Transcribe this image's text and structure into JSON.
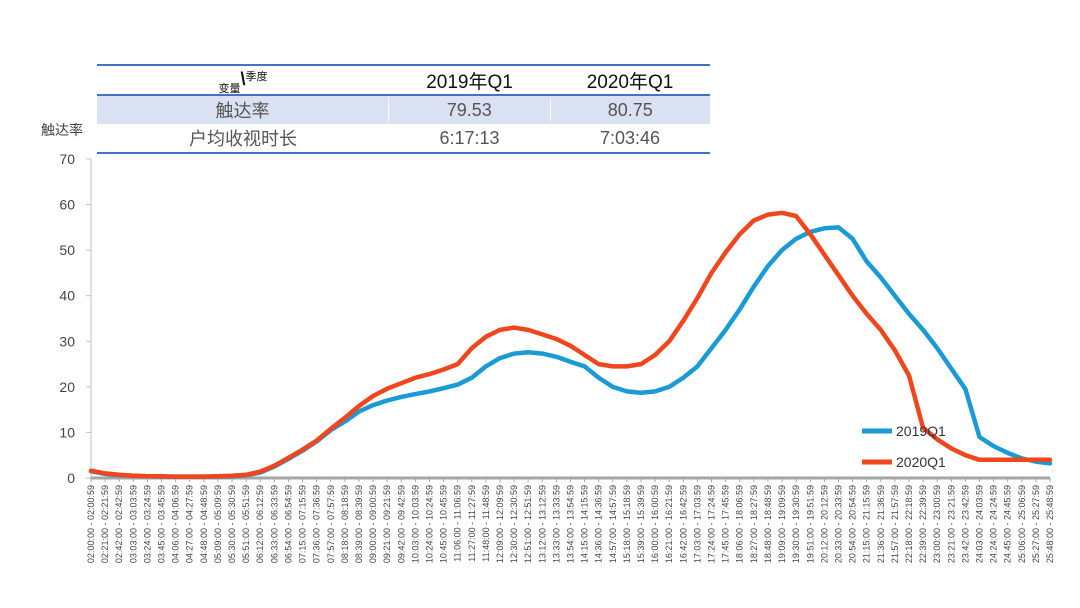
{
  "table": {
    "header": {
      "variable": "变量",
      "separator": "\\",
      "season": "季度",
      "col1": "2019年Q1",
      "col2": "2020年Q1"
    },
    "rows": [
      {
        "label": "触达率",
        "v1": "79.53",
        "v2": "80.75"
      },
      {
        "label": "户均收视时长",
        "v1": "6:17:13",
        "v2": "7:03:46"
      }
    ]
  },
  "chart_data": {
    "type": "line",
    "ylabel": "触达率",
    "ylim": [
      0,
      70
    ],
    "yticks": [
      0,
      10,
      20,
      30,
      40,
      50,
      60,
      70
    ],
    "xlabels": [
      "02:00:00 - 02:00:59",
      "02:21:00 - 02:21:59",
      "02:42:00 - 02:42:59",
      "03:03:00 - 03:03:59",
      "03:24:00 - 03:24:59",
      "03:45:00 - 03:45:59",
      "04:06:00 - 04:06:59",
      "04:27:00 - 04:27:59",
      "04:48:00 - 04:48:59",
      "05:09:00 - 05:09:59",
      "05:30:00 - 05:30:59",
      "05:51:00 - 05:51:59",
      "06:12:00 - 06:12:59",
      "06:33:00 - 06:33:59",
      "06:54:00 - 06:54:59",
      "07:15:00 - 07:15:59",
      "07:36:00 - 07:36:59",
      "07:57:00 - 07:57:59",
      "08:18:00 - 08:18:59",
      "08:39:00 - 08:39:59",
      "09:00:00 - 09:00:59",
      "09:21:00 - 09:21:59",
      "09:42:00 - 09:42:59",
      "10:03:00 - 10:03:59",
      "10:24:00 - 10:24:59",
      "10:45:00 - 10:45:59",
      "11:06:00 - 11:06:59",
      "11:27:00 - 11:27:59",
      "11:48:00 - 11:48:59",
      "12:09:00 - 12:09:59",
      "12:30:00 - 12:30:59",
      "12:51:00 - 12:51:59",
      "13:12:00 - 13:12:59",
      "13:33:00 - 13:33:59",
      "13:54:00 - 13:54:59",
      "14:15:00 - 14:15:59",
      "14:36:00 - 14:36:59",
      "14:57:00 - 14:57:59",
      "15:18:00 - 15:18:59",
      "15:39:00 - 15:39:59",
      "16:00:00 - 16:00:59",
      "16:21:00 - 16:21:59",
      "16:42:00 - 16:42:59",
      "17:03:00 - 17:03:59",
      "17:24:00 - 17:24:59",
      "17:45:00 - 17:45:59",
      "18:06:00 - 18:06:59",
      "18:27:00 - 18:27:59",
      "18:48:00 - 18:48:59",
      "19:09:00 - 19:09:59",
      "19:30:00 - 19:30:59",
      "19:51:00 - 19:51:59",
      "20:12:00 - 20:12:59",
      "20:33:00 - 20:33:59",
      "20:54:00 - 20:54:59",
      "21:15:00 - 21:15:59",
      "21:36:00 - 21:36:59",
      "21:57:00 - 21:57:59",
      "22:18:00 - 22:18:59",
      "22:39:00 - 22:39:59",
      "23:00:00 - 23:00:59",
      "23:21:00 - 23:21:59",
      "23:42:00 - 23:42:59",
      "24:03:00 - 24:03:59",
      "24:24:00 - 24:24:59",
      "24:45:00 - 24:45:59",
      "25:06:00 - 25:06:59",
      "25:27:00 - 25:27:59",
      "25:48:00 - 25:48:59"
    ],
    "series": [
      {
        "name": "2019Q1",
        "color": "#1a9ad6",
        "values": [
          1.5,
          0.9,
          0.6,
          0.5,
          0.4,
          0.3,
          0.3,
          0.3,
          0.3,
          0.3,
          0.4,
          0.6,
          1.2,
          2.5,
          4.2,
          6.0,
          8.0,
          10.5,
          12.4,
          14.6,
          16.0,
          17.0,
          17.8,
          18.4,
          19.0,
          19.7,
          20.5,
          22.0,
          24.5,
          26.3,
          27.3,
          27.6,
          27.3,
          26.6,
          25.5,
          24.5,
          22.0,
          20.0,
          19.0,
          18.7,
          19.0,
          20.0,
          22.0,
          24.5,
          28.5,
          32.5,
          37.0,
          42.0,
          46.5,
          50.0,
          52.5,
          54.0,
          54.8,
          55.0,
          52.5,
          47.5,
          44.0,
          40.0,
          36.0,
          32.5,
          28.5,
          24.0,
          19.5,
          9.0,
          7.0,
          5.5,
          4.3,
          3.6,
          3.2
        ]
      },
      {
        "name": "2020Q1",
        "color": "#f0461e",
        "values": [
          1.6,
          1.0,
          0.7,
          0.5,
          0.4,
          0.4,
          0.3,
          0.3,
          0.3,
          0.4,
          0.5,
          0.7,
          1.4,
          2.7,
          4.4,
          6.2,
          8.2,
          10.8,
          13.2,
          15.8,
          18.0,
          19.6,
          20.8,
          22.0,
          22.8,
          23.8,
          25.0,
          28.5,
          31.0,
          32.5,
          33.0,
          32.5,
          31.5,
          30.5,
          29.0,
          27.0,
          25.0,
          24.5,
          24.5,
          25.0,
          27.0,
          30.0,
          34.5,
          39.5,
          45.0,
          49.5,
          53.5,
          56.5,
          57.8,
          58.2,
          57.5,
          53.5,
          49.0,
          44.5,
          40.0,
          36.0,
          32.5,
          28.0,
          22.5,
          11.0,
          8.5,
          6.5,
          5.0,
          4.0,
          4.0,
          4.0,
          4.0,
          4.0,
          4.0
        ]
      }
    ],
    "legend": [
      "2019Q1",
      "2020Q1"
    ],
    "legend_position": "lower-right"
  }
}
